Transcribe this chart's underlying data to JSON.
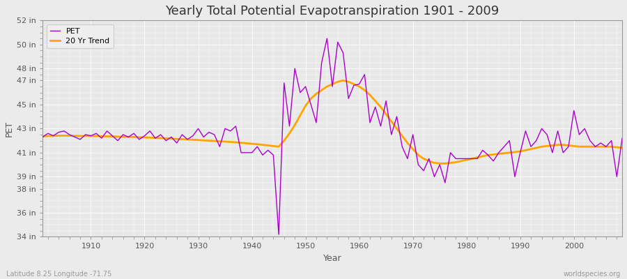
{
  "title": "Yearly Total Potential Evapotranspiration 1901 - 2009",
  "xlabel": "Year",
  "ylabel": "PET",
  "pet_color": "#AA00CC",
  "trend_color": "#FFA500",
  "background_color": "#EBEBEB",
  "plot_bg_color": "#E8E8E8",
  "grid_color": "#FFFFFF",
  "title_fontsize": 13,
  "label_fontsize": 9,
  "tick_fontsize": 8,
  "ylim": [
    34,
    52
  ],
  "yticks": [
    34,
    36,
    38,
    39,
    41,
    43,
    45,
    47,
    48,
    50,
    52
  ],
  "ytick_labels": [
    "34 in",
    "36 in",
    "38 in",
    "39 in",
    "41 in",
    "43 in",
    "45 in",
    "47 in",
    "48 in",
    "50 in",
    "52 in"
  ],
  "xlim": [
    1901,
    2009
  ],
  "xticks": [
    1910,
    1920,
    1930,
    1940,
    1950,
    1960,
    1970,
    1980,
    1990,
    2000
  ],
  "legend_labels": [
    "PET",
    "20 Yr Trend"
  ],
  "subtitle_left": "Latitude 8.25 Longitude -71.75",
  "subtitle_right": "worldspecies.org",
  "years": [
    1901,
    1902,
    1903,
    1904,
    1905,
    1906,
    1907,
    1908,
    1909,
    1910,
    1911,
    1912,
    1913,
    1914,
    1915,
    1916,
    1917,
    1918,
    1919,
    1920,
    1921,
    1922,
    1923,
    1924,
    1925,
    1926,
    1927,
    1928,
    1929,
    1930,
    1931,
    1932,
    1933,
    1934,
    1935,
    1936,
    1937,
    1938,
    1939,
    1940,
    1941,
    1942,
    1943,
    1944,
    1945,
    1946,
    1947,
    1948,
    1949,
    1950,
    1951,
    1952,
    1953,
    1954,
    1955,
    1956,
    1957,
    1958,
    1959,
    1960,
    1961,
    1962,
    1963,
    1964,
    1965,
    1966,
    1967,
    1968,
    1969,
    1970,
    1971,
    1972,
    1973,
    1974,
    1975,
    1976,
    1977,
    1978,
    1979,
    1980,
    1981,
    1982,
    1983,
    1984,
    1985,
    1986,
    1987,
    1988,
    1989,
    1990,
    1991,
    1992,
    1993,
    1994,
    1995,
    1996,
    1997,
    1998,
    1999,
    2000,
    2001,
    2002,
    2003,
    2004,
    2005,
    2006,
    2007,
    2008,
    2009
  ],
  "pet_values": [
    42.3,
    42.6,
    42.4,
    42.7,
    42.8,
    42.5,
    42.3,
    42.1,
    42.5,
    42.4,
    42.6,
    42.2,
    42.8,
    42.4,
    42.0,
    42.5,
    42.3,
    42.6,
    42.1,
    42.4,
    42.8,
    42.2,
    42.5,
    42.0,
    42.3,
    41.8,
    42.5,
    42.1,
    42.4,
    43.0,
    42.3,
    42.7,
    42.5,
    41.5,
    43.0,
    42.8,
    43.2,
    41.0,
    41.0,
    41.0,
    41.5,
    40.8,
    41.2,
    40.8,
    34.2,
    46.8,
    43.2,
    48.0,
    46.0,
    46.5,
    45.0,
    43.5,
    48.5,
    50.5,
    46.5,
    50.2,
    49.3,
    45.5,
    46.6,
    46.7,
    47.5,
    43.5,
    44.8,
    43.2,
    45.3,
    42.5,
    44.0,
    41.5,
    40.5,
    42.5,
    40.0,
    39.5,
    40.5,
    39.0,
    40.0,
    38.5,
    41.0,
    40.5,
    40.5,
    40.5,
    40.5,
    40.5,
    41.2,
    40.8,
    40.3,
    41.0,
    41.5,
    42.0,
    39.0,
    41.0,
    42.8,
    41.5,
    42.0,
    43.0,
    42.5,
    41.0,
    42.8,
    41.0,
    41.5,
    44.5,
    42.5,
    43.0,
    42.0,
    41.5,
    41.8,
    41.5,
    42.0,
    39.0,
    42.2
  ],
  "trend_values": [
    42.35,
    42.38,
    42.4,
    42.41,
    42.42,
    42.41,
    42.4,
    42.39,
    42.39,
    42.38,
    42.38,
    42.37,
    42.36,
    42.35,
    42.33,
    42.32,
    42.31,
    42.3,
    42.28,
    42.27,
    42.25,
    42.23,
    42.21,
    42.19,
    42.17,
    42.14,
    42.12,
    42.1,
    42.07,
    42.05,
    42.02,
    42.0,
    41.97,
    41.94,
    41.92,
    41.89,
    41.86,
    41.82,
    41.78,
    41.74,
    41.7,
    41.65,
    41.6,
    41.55,
    41.5,
    42.0,
    42.6,
    43.3,
    44.1,
    44.9,
    45.5,
    45.9,
    46.2,
    46.5,
    46.7,
    46.9,
    47.0,
    46.9,
    46.7,
    46.5,
    46.2,
    45.8,
    45.3,
    44.8,
    44.2,
    43.6,
    43.0,
    42.4,
    41.8,
    41.3,
    40.8,
    40.5,
    40.3,
    40.15,
    40.1,
    40.1,
    40.15,
    40.2,
    40.3,
    40.4,
    40.5,
    40.6,
    40.7,
    40.8,
    40.85,
    40.9,
    40.95,
    41.0,
    41.05,
    41.1,
    41.2,
    41.3,
    41.4,
    41.5,
    41.55,
    41.6,
    41.65,
    41.65,
    41.6,
    41.55,
    41.5,
    41.5,
    41.5,
    41.5,
    41.5,
    41.5,
    41.5,
    41.45,
    41.4
  ]
}
